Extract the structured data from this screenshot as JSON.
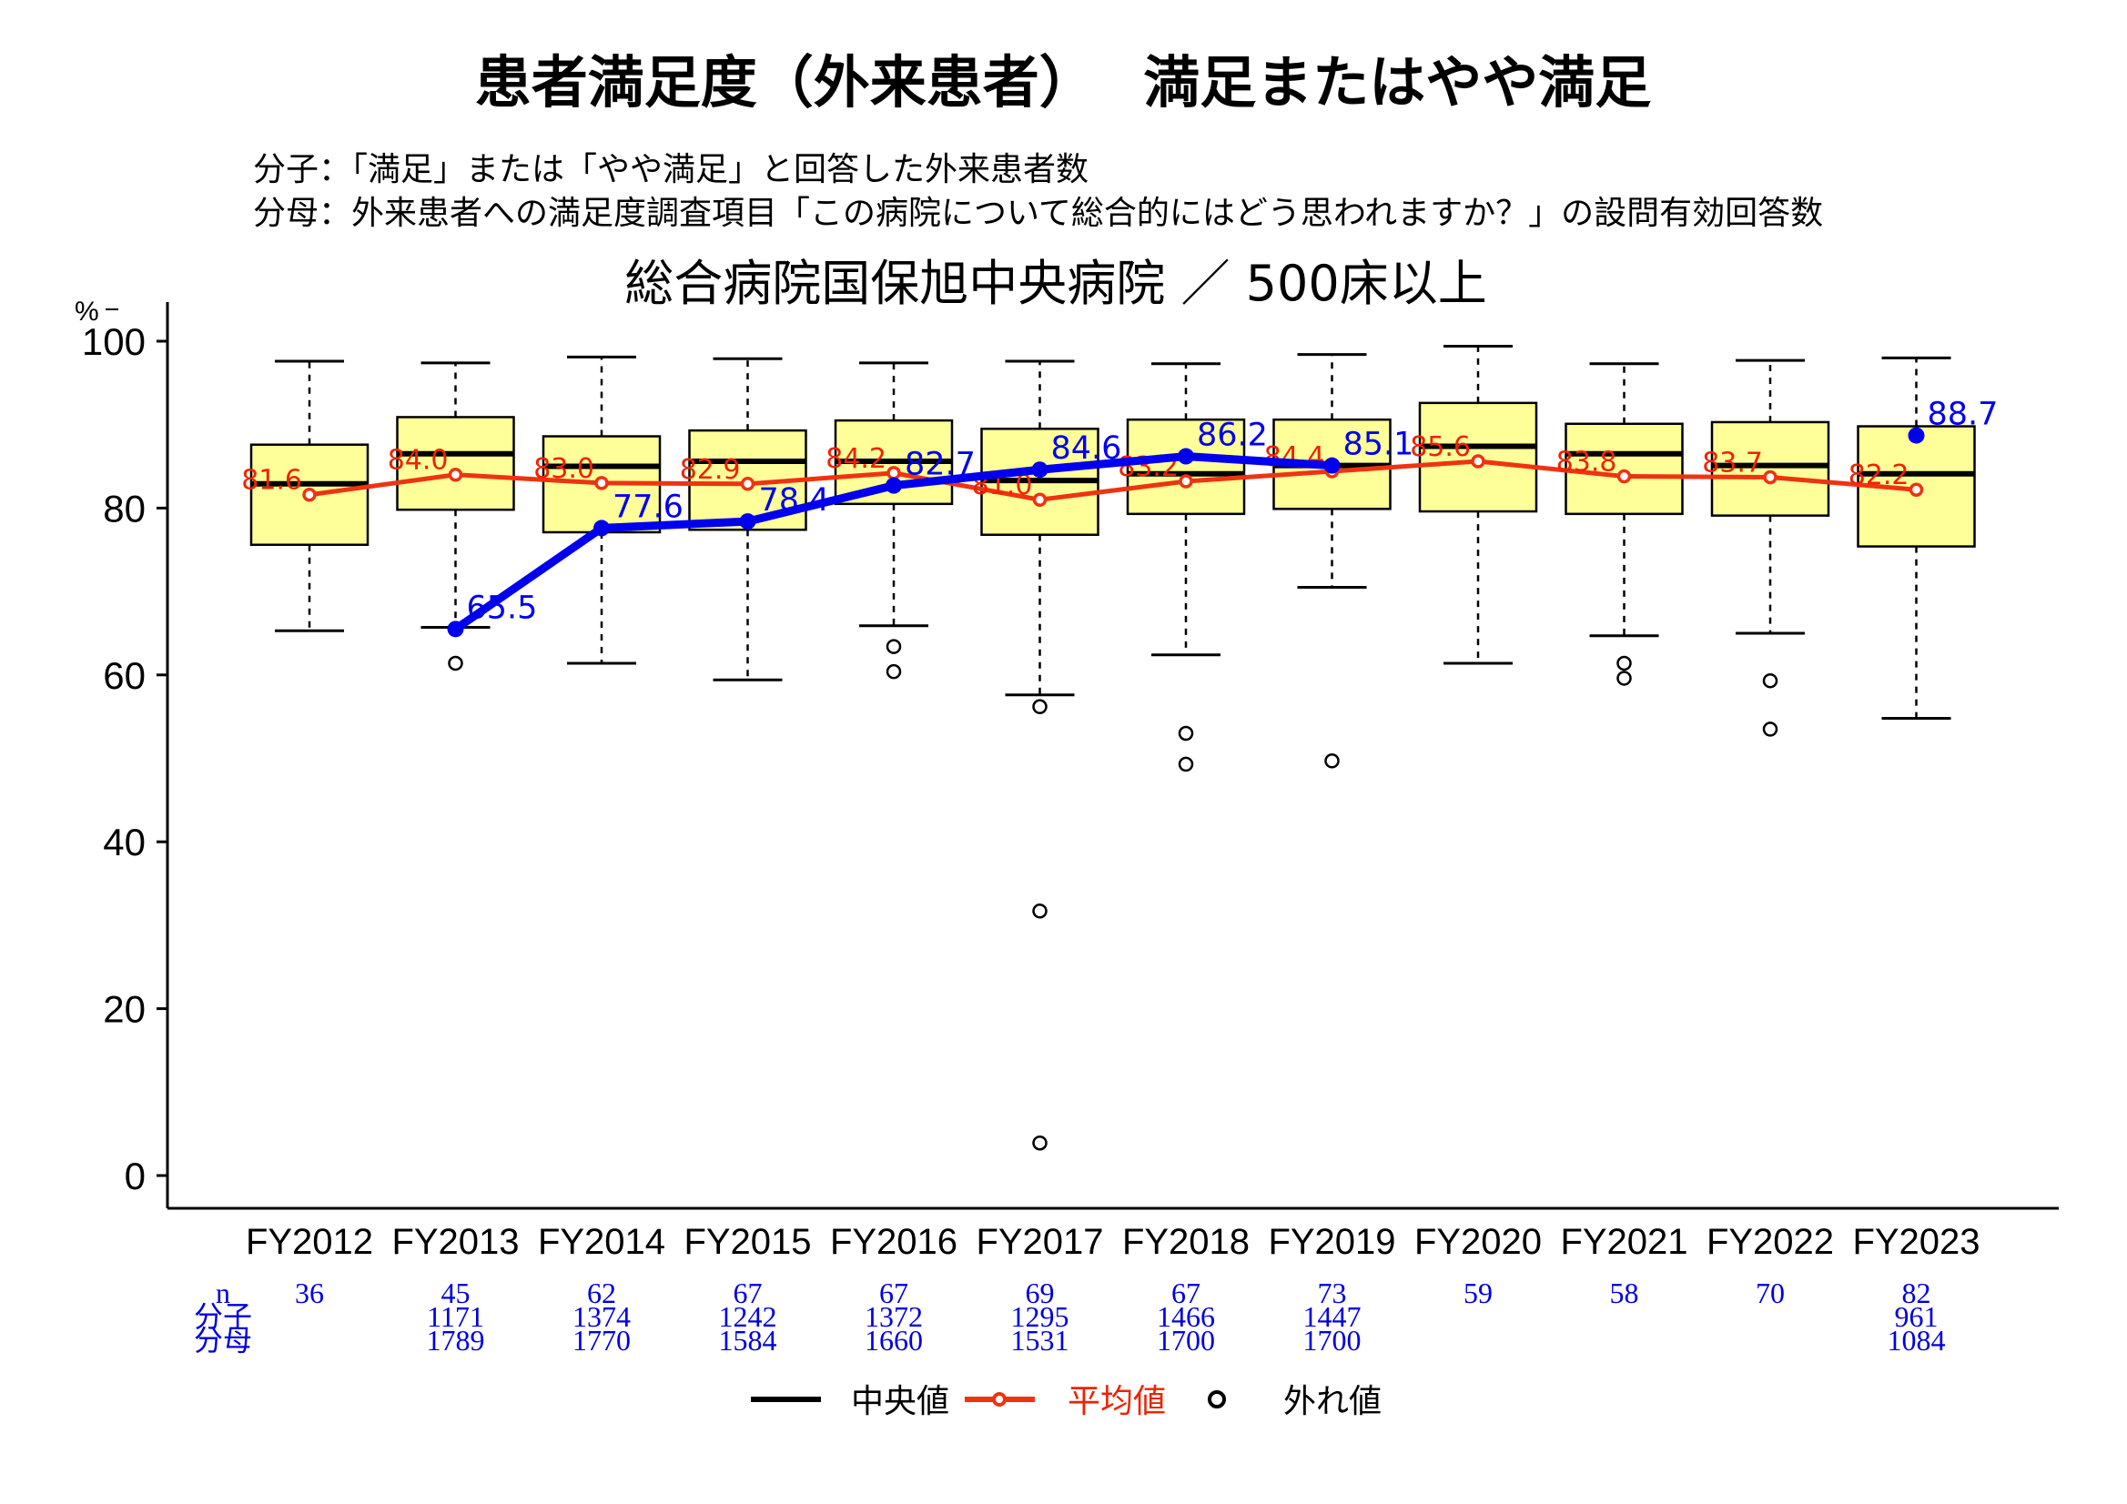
{
  "title": "患者満足度（外来患者）　 満足またはやや満足",
  "definition": {
    "numerator": "分子：「満足」または「やや満足」と回答した外来患者数",
    "denominator": "分母：外来患者への満足度調査項目「この病院について総合的にはどう思われますか？」の設問有効回答数"
  },
  "legend": {
    "median": "中央値",
    "mean": "平均値",
    "outlier": "外れ値"
  },
  "count_labels": {
    "n": "n",
    "numerator": "分子",
    "denominator": "分母"
  },
  "colors": {
    "box_fill": "#ffff99",
    "mean_line": "#ee3311",
    "hospital_line": "#0000ee",
    "count_text": "#0000dd",
    "median_line": "#000000"
  },
  "chart_data": {
    "type": "box",
    "subtitle": "総合病院国保旭中央病院 ／ 500床以上",
    "ylabel": "%",
    "ylim": [
      0,
      100
    ],
    "yticks": [
      "0",
      "20",
      "40",
      "60",
      "80",
      "100"
    ],
    "categories": [
      "FY2012",
      "FY2013",
      "FY2014",
      "FY2015",
      "FY2016",
      "FY2017",
      "FY2018",
      "FY2019",
      "FY2020",
      "FY2021",
      "FY2022",
      "FY2023"
    ],
    "boxes": [
      {
        "whisker_low": 65.3,
        "q1": 75.6,
        "median": 82.9,
        "q3": 87.6,
        "whisker_high": 97.6,
        "outliers": []
      },
      {
        "whisker_low": 65.7,
        "q1": 79.8,
        "median": 86.5,
        "q3": 90.9,
        "whisker_high": 97.4,
        "outliers": [
          61.4
        ]
      },
      {
        "whisker_low": 61.4,
        "q1": 77.1,
        "median": 85.0,
        "q3": 88.6,
        "whisker_high": 98.1,
        "outliers": []
      },
      {
        "whisker_low": 59.4,
        "q1": 77.4,
        "median": 85.6,
        "q3": 89.3,
        "whisker_high": 97.9,
        "outliers": []
      },
      {
        "whisker_low": 65.9,
        "q1": 80.5,
        "median": 85.6,
        "q3": 90.5,
        "whisker_high": 97.4,
        "outliers": [
          63.4,
          60.4
        ]
      },
      {
        "whisker_low": 57.6,
        "q1": 76.8,
        "median": 83.3,
        "q3": 89.5,
        "whisker_high": 97.6,
        "outliers": [
          56.2,
          31.7,
          3.9
        ]
      },
      {
        "whisker_low": 62.4,
        "q1": 79.3,
        "median": 84.1,
        "q3": 90.6,
        "whisker_high": 97.3,
        "outliers": [
          53.0,
          49.3
        ]
      },
      {
        "whisker_low": 70.5,
        "q1": 79.9,
        "median": 85.1,
        "q3": 90.6,
        "whisker_high": 98.4,
        "outliers": [
          49.7
        ]
      },
      {
        "whisker_low": 61.4,
        "q1": 79.6,
        "median": 87.4,
        "q3": 92.6,
        "whisker_high": 99.4,
        "outliers": []
      },
      {
        "whisker_low": 64.7,
        "q1": 79.3,
        "median": 86.5,
        "q3": 90.1,
        "whisker_high": 97.3,
        "outliers": [
          61.4,
          59.6
        ]
      },
      {
        "whisker_low": 65.0,
        "q1": 79.1,
        "median": 85.1,
        "q3": 90.3,
        "whisker_high": 97.7,
        "outliers": [
          59.3,
          53.5
        ]
      },
      {
        "whisker_low": 54.8,
        "q1": 75.4,
        "median": 84.1,
        "q3": 89.8,
        "whisker_high": 98.0,
        "outliers": []
      }
    ],
    "mean": {
      "name": "平均値",
      "values": [
        81.6,
        84.0,
        83.0,
        82.9,
        84.2,
        81.0,
        83.2,
        84.4,
        85.6,
        83.8,
        83.7,
        82.2
      ],
      "labels": [
        "81.6",
        "84.0",
        "83.0",
        "82.9",
        "84.2",
        "81.0",
        "83.2",
        "84.4",
        "85.6",
        "83.8",
        "83.7",
        "82.2"
      ]
    },
    "hospital": {
      "values": [
        null,
        65.5,
        77.6,
        78.4,
        82.7,
        84.6,
        86.2,
        85.1,
        null,
        null,
        null,
        88.7
      ],
      "labels": [
        "",
        "65.5",
        "77.6",
        "78.4",
        "82.7",
        "84.6",
        "86.2",
        "85.1",
        "",
        "",
        "",
        "88.7"
      ]
    },
    "n": [
      "36",
      "45",
      "62",
      "67",
      "67",
      "69",
      "67",
      "73",
      "59",
      "58",
      "70",
      "82"
    ],
    "numerator": [
      "",
      "1171",
      "1374",
      "1242",
      "1372",
      "1295",
      "1466",
      "1447",
      "",
      "",
      "",
      "961"
    ],
    "denominator": [
      "",
      "1789",
      "1770",
      "1584",
      "1660",
      "1531",
      "1700",
      "1700",
      "",
      "",
      "",
      "1084"
    ]
  }
}
